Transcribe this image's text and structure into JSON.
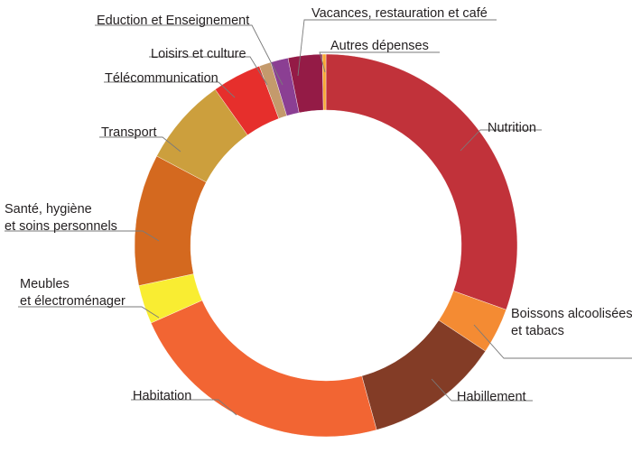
{
  "chart_data": {
    "type": "pie",
    "variant": "donut",
    "title": "",
    "legend": "none",
    "categories": [
      "Nutrition",
      "Boissons alcoolisées et tabacs",
      "Habillement",
      "Habitation",
      "Meubles et électroménager",
      "Santé, hygiène et soins personnels",
      "Transport",
      "Télécommunication",
      "Loisirs et culture",
      "Eduction et Enseignement",
      "Vacances, restauration et café",
      "Autres dépenses"
    ],
    "values": [
      30.7,
      3.9,
      11.5,
      22.8,
      3.3,
      11.2,
      7.5,
      4.2,
      1.0,
      1.5,
      2.9,
      0.3
    ],
    "unit": "%",
    "colors": [
      "#c1323a",
      "#f48b33",
      "#833c26",
      "#f26533",
      "#f9ed32",
      "#d4691f",
      "#cc9f3d",
      "#e62f2c",
      "#c49a6c",
      "#8b3f93",
      "#941b46",
      "#f7a833"
    ],
    "labels": [
      {
        "lines": [
          "Nutrition"
        ]
      },
      {
        "lines": [
          "Boissons alcoolisées",
          "et tabacs"
        ]
      },
      {
        "lines": [
          "Habillement"
        ]
      },
      {
        "lines": [
          "Habitation"
        ]
      },
      {
        "lines": [
          "Meubles",
          "et électroménager"
        ]
      },
      {
        "lines": [
          "Santé, hygiène",
          "et soins personnels"
        ]
      },
      {
        "lines": [
          "Transport"
        ]
      },
      {
        "lines": [
          "Télécommunication"
        ]
      },
      {
        "lines": [
          "Loisirs et culture"
        ]
      },
      {
        "lines": [
          "Eduction et Enseignement"
        ]
      },
      {
        "lines": [
          "Vacances, restauration et café"
        ]
      },
      {
        "lines": [
          "Autres dépenses"
        ]
      }
    ]
  }
}
